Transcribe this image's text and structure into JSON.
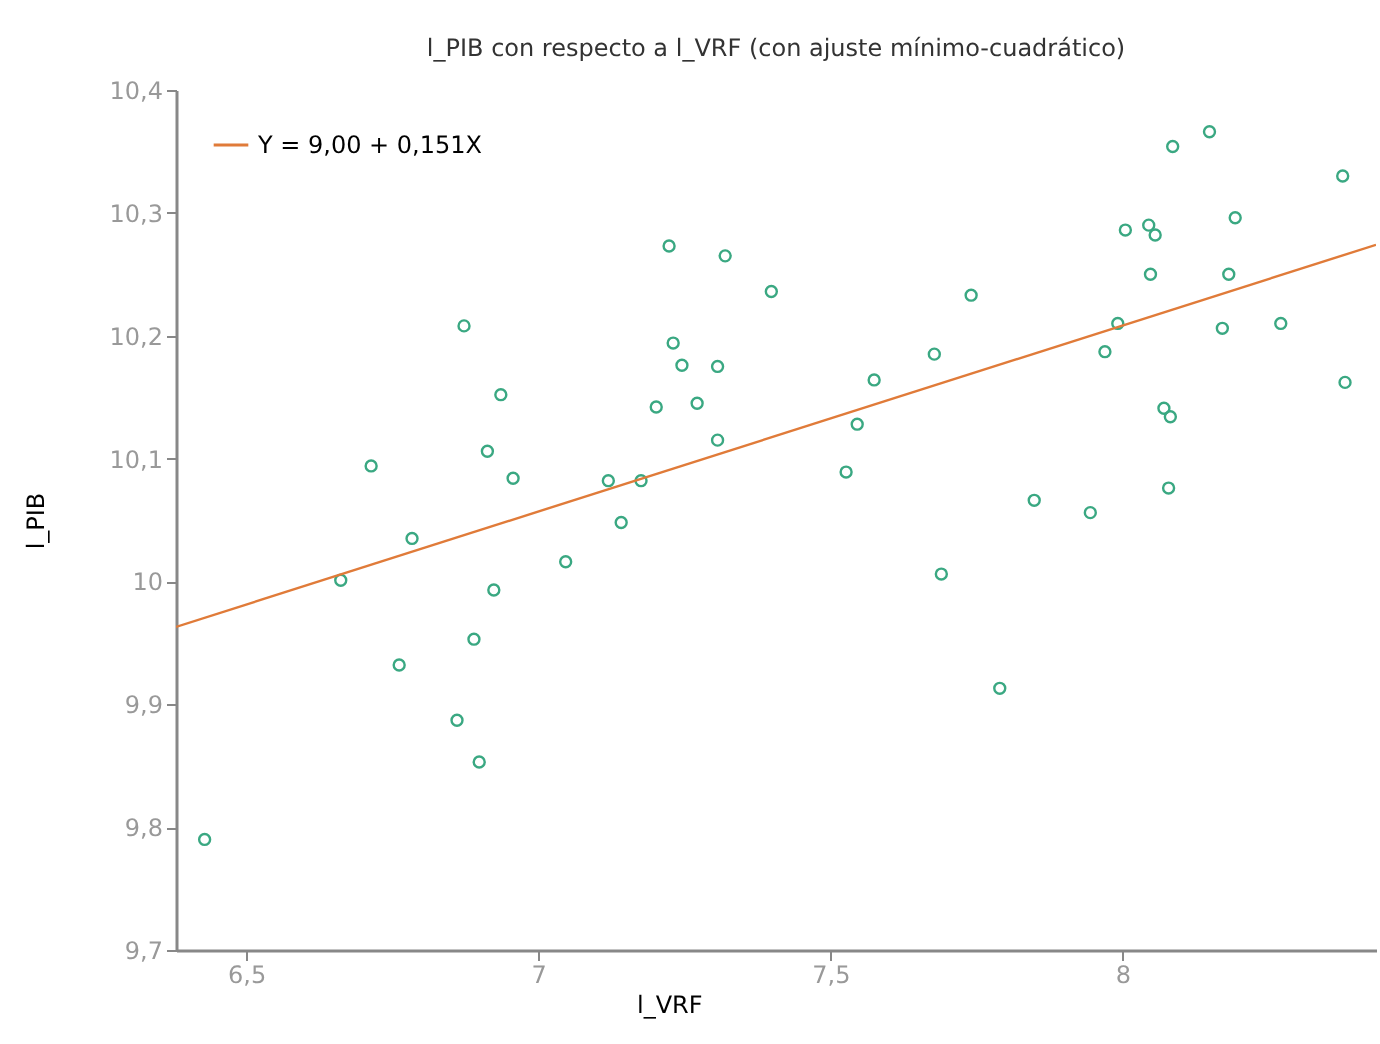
{
  "chart_data": {
    "type": "scatter",
    "title": "l_PIB con respecto a l_VRF (con ajuste mínimo-cuadrático)",
    "xlabel": "l_VRF",
    "ylabel": "l_PIB",
    "xlim": [
      6.38,
      8.434
    ],
    "ylim": [
      9.7,
      10.4
    ],
    "xticks": [
      {
        "value": 6.5,
        "label": "6,5"
      },
      7,
      {
        "value": 7.5,
        "label": "7,5"
      },
      8
    ],
    "yticks": [
      {
        "value": 9.7,
        "label": "9,7"
      },
      {
        "value": 9.8,
        "label": "9,8"
      },
      {
        "value": 9.9,
        "label": "9,9"
      },
      10,
      {
        "value": 10.1,
        "label": "10,1"
      },
      {
        "value": 10.2,
        "label": "10,2"
      },
      {
        "value": 10.3,
        "label": "10,3"
      },
      {
        "value": 10.4,
        "label": "10,4"
      }
    ],
    "grid": false,
    "legend": "top left",
    "series": [
      {
        "marker": "circle",
        "color": "#3aa882",
        "x": [
          6.873,
          6.936,
          6.913,
          6.957,
          6.714,
          7.224,
          7.231,
          7.246,
          7.307,
          7.202,
          7.272,
          7.307,
          7.12,
          7.176,
          7.32,
          7.399,
          7.575,
          7.546,
          7.527,
          7.678,
          7.741,
          7.849,
          7.945,
          7.97,
          7.992,
          8.005,
          8.045,
          8.056,
          8.048,
          8.086,
          8.149,
          8.193,
          8.182,
          8.171,
          8.271,
          8.377,
          8.381,
          8.071,
          8.082,
          8.079,
          7.69,
          7.79,
          6.662,
          6.784,
          7.047,
          7.142,
          6.924,
          6.89,
          6.762,
          6.861,
          6.899,
          6.429
        ],
        "values": [
          10.208,
          10.152,
          10.106,
          10.084,
          10.094,
          10.273,
          10.194,
          10.176,
          10.175,
          10.142,
          10.145,
          10.115,
          10.082,
          10.082,
          10.265,
          10.236,
          10.164,
          10.128,
          10.089,
          10.185,
          10.233,
          10.066,
          10.056,
          10.187,
          10.21,
          10.286,
          10.29,
          10.282,
          10.25,
          10.354,
          10.366,
          10.296,
          10.25,
          10.206,
          10.21,
          10.33,
          10.162,
          10.141,
          10.134,
          10.076,
          10.006,
          9.913,
          10.001,
          10.035,
          10.016,
          10.048,
          9.993,
          9.953,
          9.932,
          9.887,
          9.853,
          9.79
        ]
      },
      {
        "type": "line",
        "name": "Y = 9,00 + 0,151X",
        "color": "#e07b39",
        "x": [
          6.38,
          8.434
        ],
        "values": [
          9.963,
          10.274
        ]
      }
    ]
  }
}
